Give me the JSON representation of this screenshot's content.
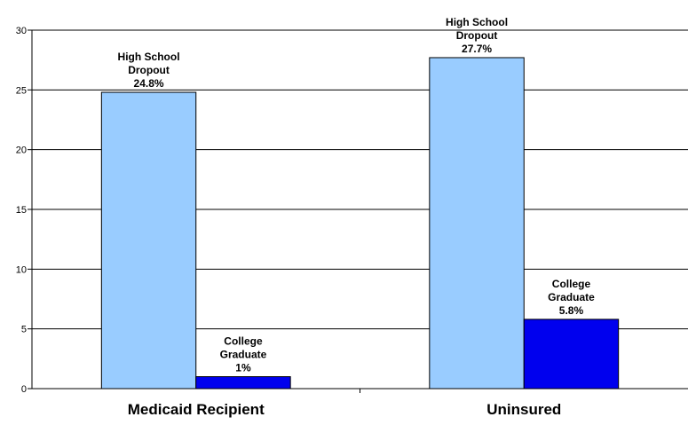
{
  "chart_data": {
    "type": "bar",
    "categories": [
      "Medicaid Recipient",
      "Uninsured"
    ],
    "series": [
      {
        "values": [
          24.8,
          27.7
        ],
        "color": "#99ccff",
        "labels": [
          [
            "High School",
            "Dropout",
            "24.8%"
          ],
          [
            "High School",
            "Dropout",
            "27.7%"
          ]
        ]
      },
      {
        "values": [
          1,
          5.8
        ],
        "color": "#0000ee",
        "labels": [
          [
            "College",
            "Graduate",
            "1%"
          ],
          [
            "College",
            "Graduate",
            "5.8%"
          ]
        ]
      }
    ],
    "ylim": [
      0,
      30
    ],
    "yticks": [
      0,
      5,
      10,
      15,
      20,
      25,
      30
    ],
    "grid": true,
    "title": "",
    "xlabel": "",
    "ylabel": ""
  }
}
